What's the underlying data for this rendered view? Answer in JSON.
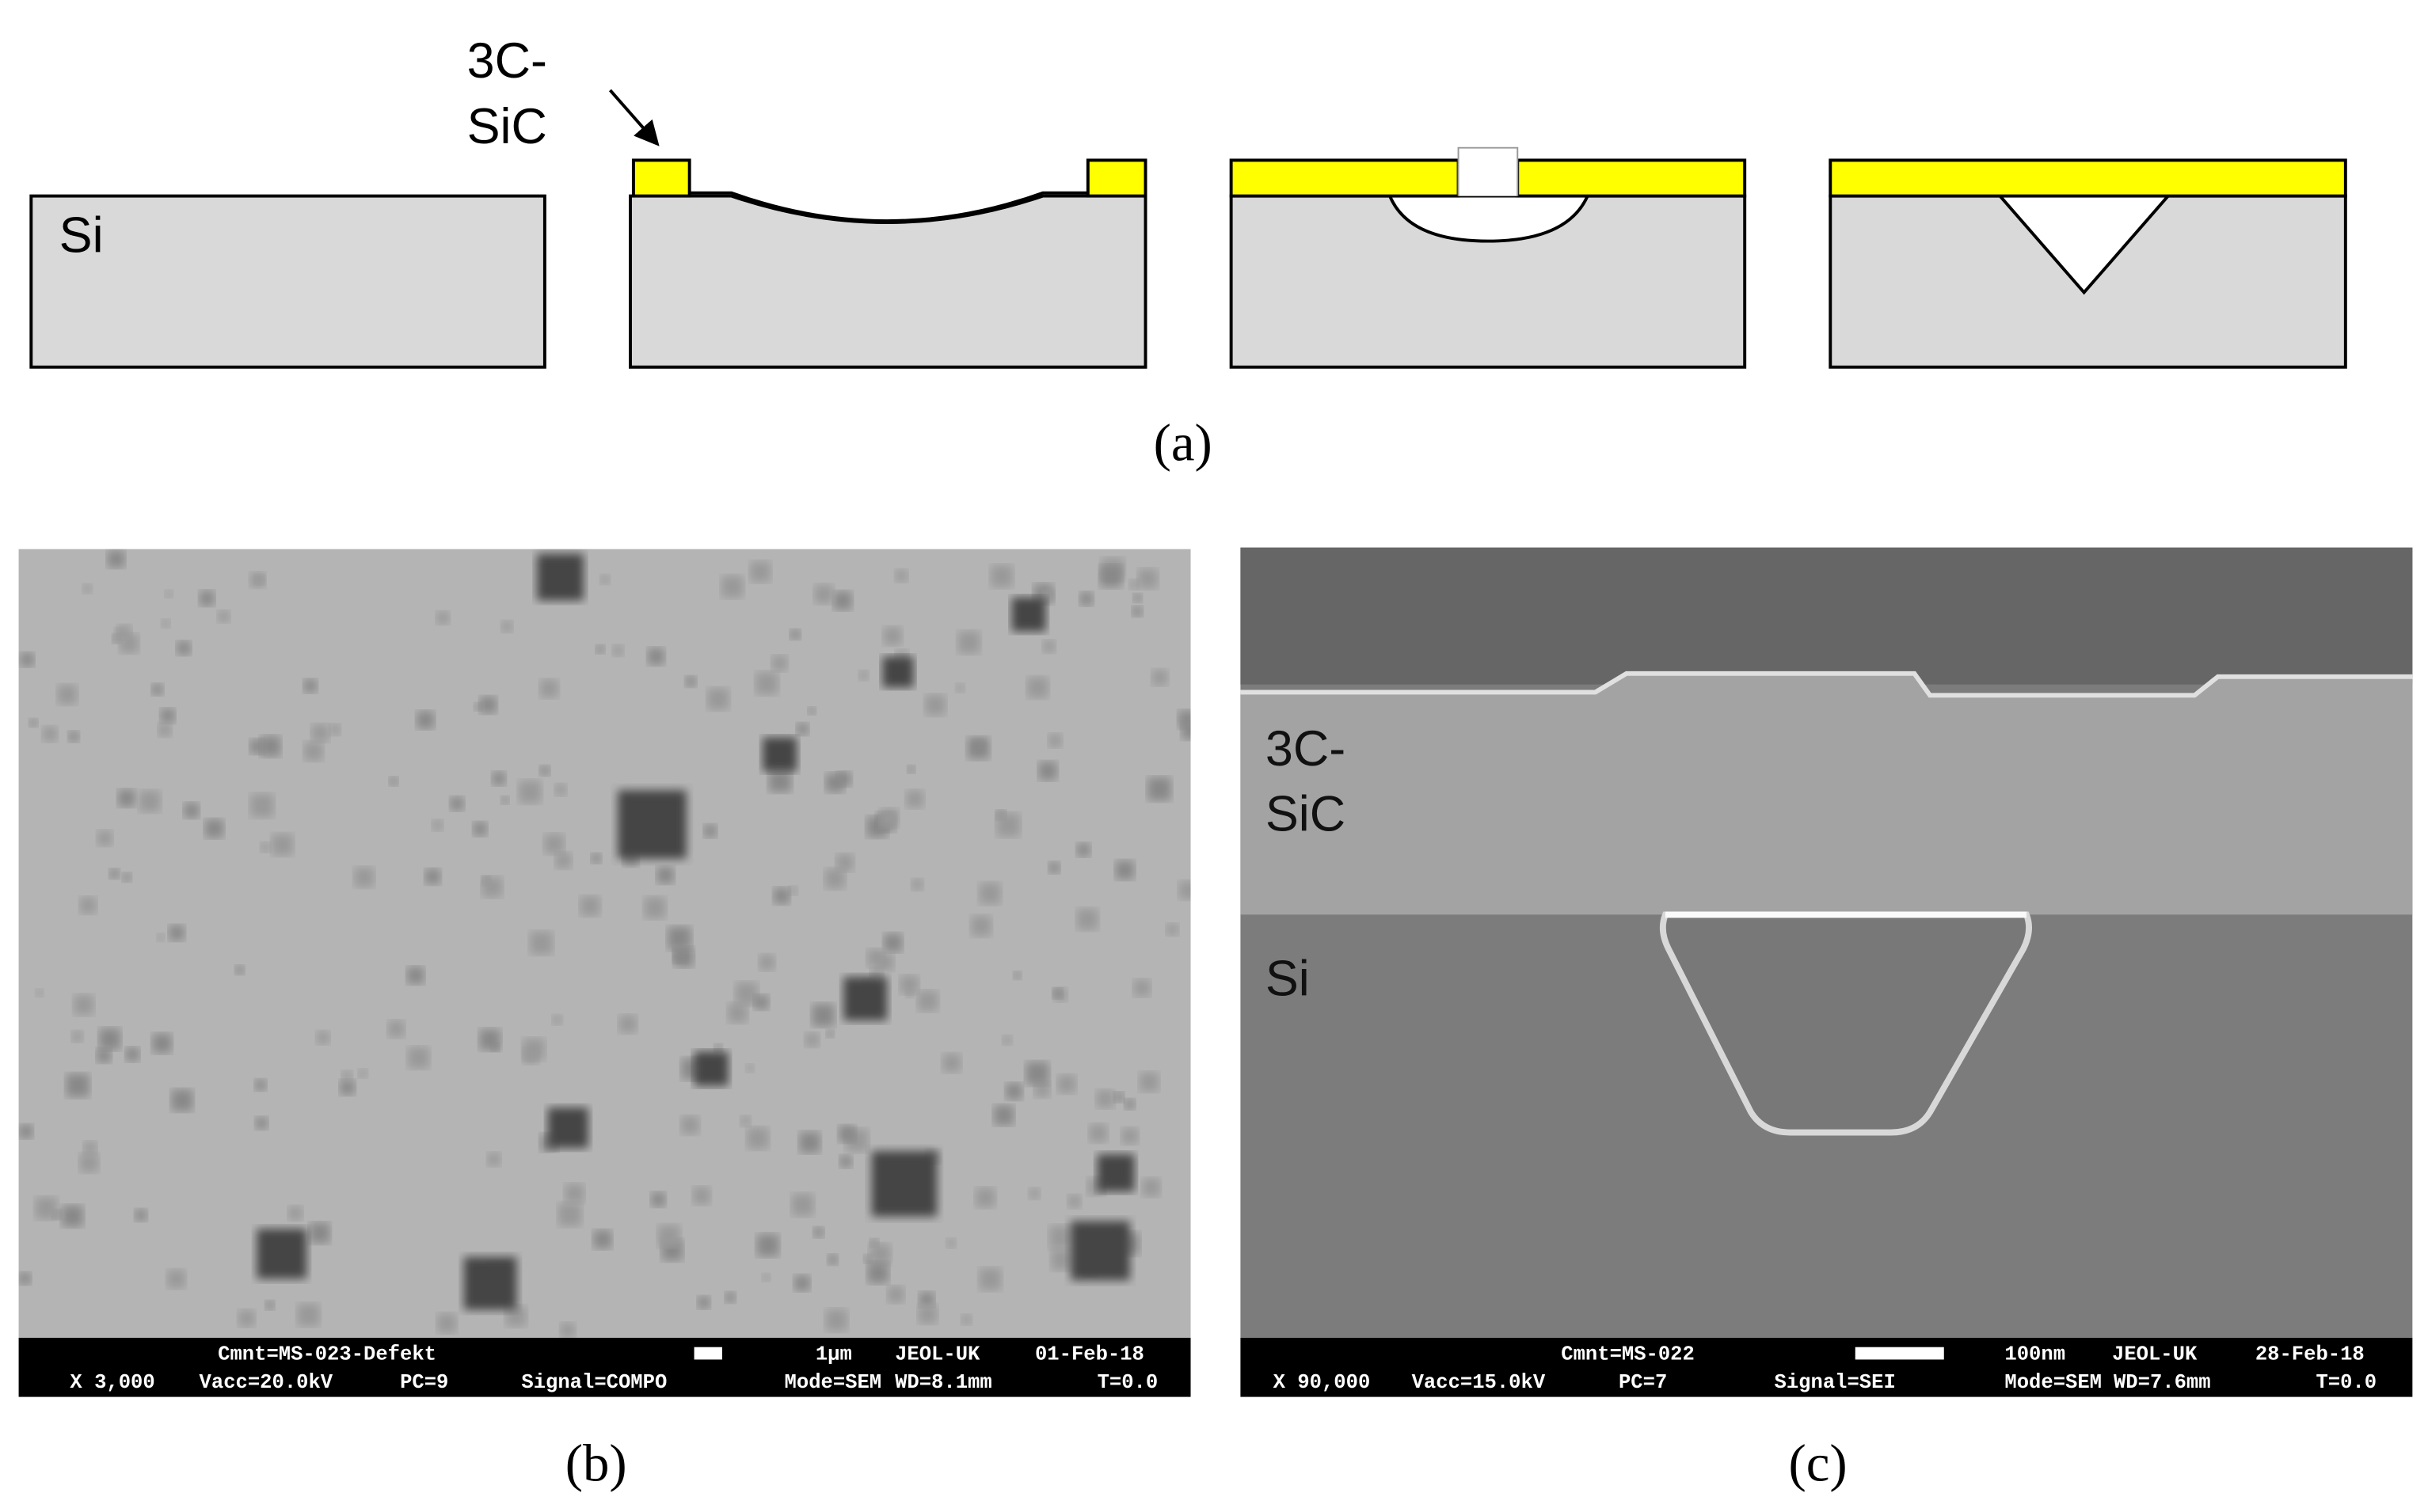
{
  "panel_a": {
    "label": "(a)",
    "layer_label_1": "3C-",
    "layer_label_2": "SiC",
    "substrate_label": "Si"
  },
  "panel_b": {
    "label": "(b)",
    "info_line_1": [
      "Cmnt=MS-023-Defekt",
      "1μm",
      "JEOL-UK",
      "01-Feb-18"
    ],
    "info_line_2": [
      "X 3,000",
      "Vacc=20.0kV",
      "PC=9",
      "Signal=COMPO",
      "Mode=SEM",
      "WD=8.1mm",
      "T=0.0"
    ]
  },
  "panel_c": {
    "label": "(c)",
    "layer_label_1": "3C-",
    "layer_label_2": "SiC",
    "substrate_label": "Si",
    "info_line_1": [
      "Cmnt=MS-022",
      "100nm",
      "JEOL-UK",
      "28-Feb-18"
    ],
    "info_line_2": [
      "X 90,000",
      "Vacc=15.0kV",
      "PC=7",
      "Signal=SEI",
      "Mode=SEM",
      "WD=7.6mm",
      "T=0.0"
    ]
  }
}
